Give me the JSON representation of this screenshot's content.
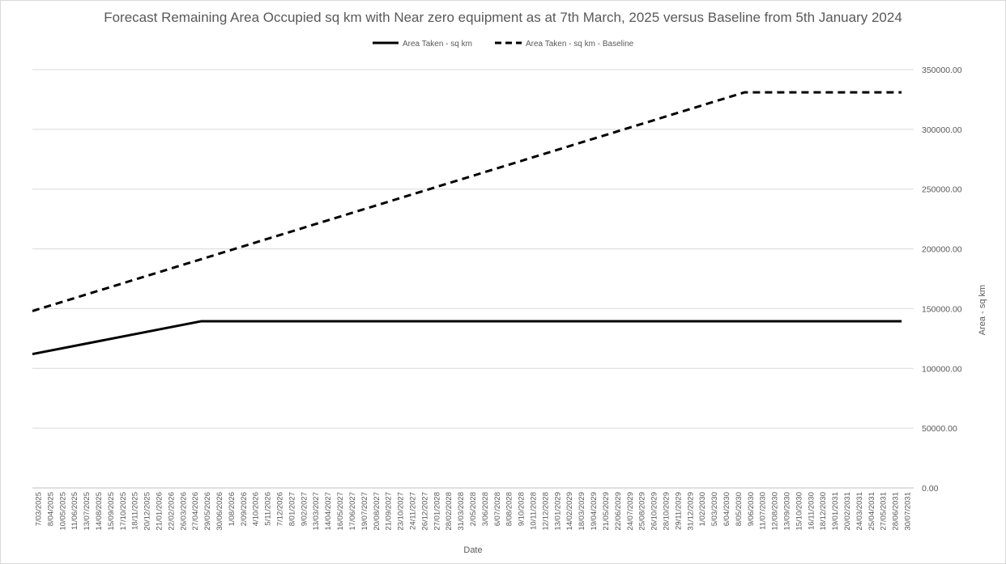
{
  "chart_data": {
    "type": "line",
    "title": "Forecast Remaining Area Occupied sq km with Near zero equipment as at 7th March, 2025 versus Baseline from 5th January 2024",
    "xlabel": "Date",
    "ylabel": "Area - sq km",
    "ylim": [
      0,
      350000
    ],
    "y_ticks": [
      "0.00",
      "50000.00",
      "100000.00",
      "150000.00",
      "200000.00",
      "250000.00",
      "300000.00",
      "350000.00"
    ],
    "grid": true,
    "legend_position": "top",
    "x_tick_labels": [
      "7/03/2025",
      "8/04/2025",
      "10/05/2025",
      "11/06/2025",
      "13/07/2025",
      "14/08/2025",
      "15/09/2025",
      "17/10/2025",
      "18/11/2025",
      "20/12/2025",
      "21/01/2026",
      "22/02/2026",
      "26/03/2026",
      "27/04/2026",
      "29/05/2026",
      "30/06/2026",
      "1/08/2026",
      "2/09/2026",
      "4/10/2026",
      "5/11/2026",
      "7/12/2026",
      "8/01/2027",
      "9/02/2027",
      "13/03/2027",
      "14/04/2027",
      "16/05/2027",
      "17/06/2027",
      "19/07/2027",
      "20/08/2027",
      "21/09/2027",
      "23/10/2027",
      "24/11/2027",
      "26/12/2027",
      "27/01/2028",
      "28/02/2028",
      "31/03/2028",
      "2/05/2028",
      "3/06/2028",
      "6/07/2028",
      "8/08/2028",
      "9/10/2028",
      "10/11/2028",
      "12/12/2028",
      "13/01/2029",
      "14/02/2029",
      "18/03/2029",
      "19/04/2029",
      "21/05/2029",
      "22/06/2029",
      "24/07/2029",
      "25/08/2029",
      "26/10/2029",
      "28/10/2029",
      "29/11/2029",
      "31/12/2029",
      "1/02/2030",
      "5/03/2030",
      "6/04/2030",
      "8/05/2030",
      "9/06/2030",
      "11/07/2030",
      "12/08/2030",
      "13/09/2030",
      "15/10/2030",
      "16/11/2030",
      "18/12/2030",
      "19/01/2031",
      "20/02/2031",
      "24/03/2031",
      "25/04/2031",
      "27/05/2031",
      "28/06/2031",
      "30/07/2031"
    ],
    "series": [
      {
        "name": "Area Taken - sq km",
        "style": "solid",
        "color": "#000000",
        "x": [
          "7/03/2025",
          "29/05/2026",
          "30/07/2031"
        ],
        "values": [
          112000,
          139500,
          139500
        ]
      },
      {
        "name": "Area Taken - sq km - Baseline",
        "style": "dashed",
        "color": "#000000",
        "x": [
          "7/03/2025",
          "9/06/2030",
          "30/07/2031"
        ],
        "values": [
          148000,
          331000,
          331000
        ]
      }
    ]
  }
}
